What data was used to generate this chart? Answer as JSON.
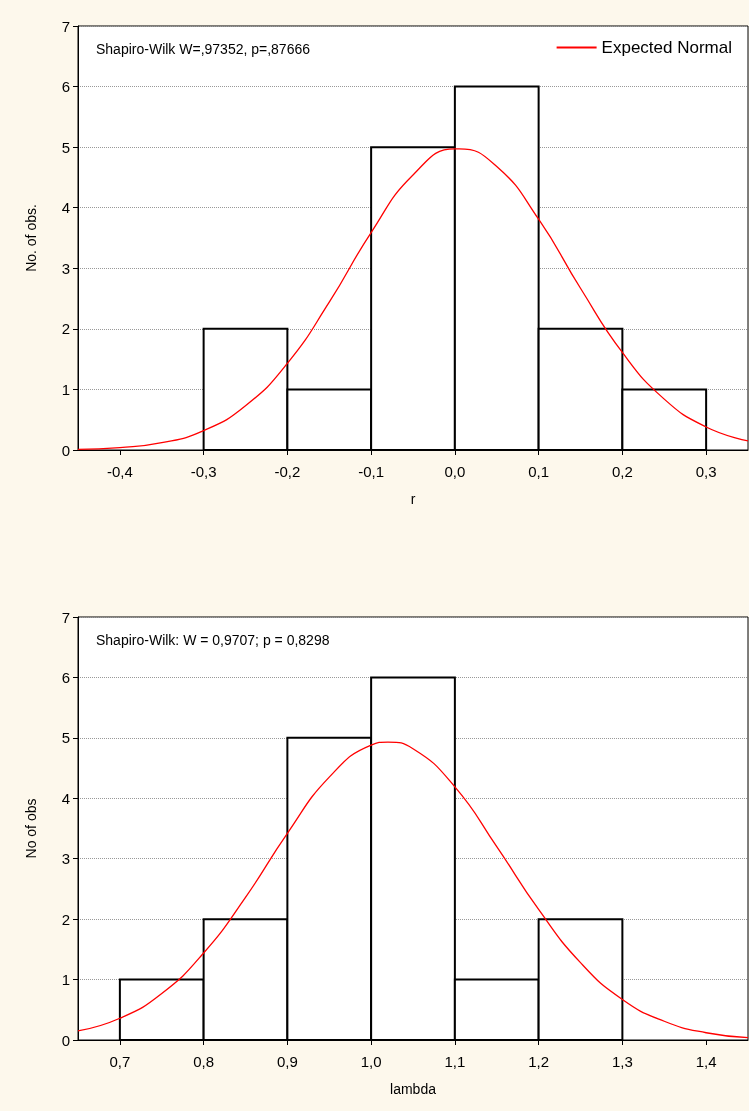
{
  "chart_data": [
    {
      "type": "histogram",
      "xlabel": "r",
      "ylabel": "No. of obs.",
      "annotations": [
        "Shapiro-Wilk W=,97352, p=,87666"
      ],
      "bins": [
        -0.3,
        -0.2,
        -0.1,
        0,
        0.1,
        0.2,
        0.3
      ],
      "xlim": [
        -0.45,
        0.35
      ],
      "xticks": [
        {
          "value": -0.4,
          "label": "-0,4"
        },
        {
          "value": -0.3,
          "label": "-0,3"
        },
        {
          "value": -0.2,
          "label": "-0,2"
        },
        {
          "value": -0.1,
          "label": "-0,1"
        },
        {
          "value": 0,
          "label": "0,0"
        },
        {
          "value": 0.1,
          "label": "0,1"
        },
        {
          "value": 0.2,
          "label": "0,2"
        },
        {
          "value": 0.3,
          "label": "0,3"
        }
      ],
      "ylim": [
        0,
        7
      ],
      "yticks": [
        0,
        1,
        2,
        3,
        4,
        5,
        6,
        7
      ],
      "grid": "y",
      "legend": "top right",
      "marker": "none",
      "series": [
        {
          "color": "#ffffff",
          "values": [
            2,
            1,
            5,
            6,
            2,
            1
          ]
        },
        {
          "type": "line",
          "name": "Expected Normal",
          "color": "#ff0000",
          "x": [
            -0.45,
            -0.4,
            -0.35,
            -0.3,
            -0.25,
            -0.2,
            -0.15,
            -0.1,
            -0.05,
            0,
            0.005,
            0.05,
            0.1,
            0.15,
            0.2,
            0.25,
            0.3,
            0.35
          ],
          "values": [
            0.01,
            0.04,
            0.12,
            0.32,
            0.73,
            1.43,
            2.44,
            3.59,
            4.54,
            4.97,
            4.97,
            4.68,
            3.81,
            2.67,
            1.61,
            0.84,
            0.38,
            0.15
          ]
        }
      ]
    },
    {
      "type": "histogram",
      "xlabel": "lambda",
      "ylabel": "No of obs",
      "annotations": [
        "Shapiro-Wilk: W = 0,9707; p = 0,8298"
      ],
      "bins": [
        0.7,
        0.8,
        0.9,
        1.0,
        1.1,
        1.2,
        1.3
      ],
      "xlim": [
        0.65,
        1.45
      ],
      "xticks": [
        {
          "value": 0.7,
          "label": "0,7"
        },
        {
          "value": 0.8,
          "label": "0,8"
        },
        {
          "value": 0.9,
          "label": "0,9"
        },
        {
          "value": 1.0,
          "label": "1,0"
        },
        {
          "value": 1.1,
          "label": "1,1"
        },
        {
          "value": 1.2,
          "label": "1,2"
        },
        {
          "value": 1.3,
          "label": "1,3"
        },
        {
          "value": 1.4,
          "label": "1,4"
        }
      ],
      "ylim": [
        0,
        7
      ],
      "yticks": [
        0,
        1,
        2,
        3,
        4,
        5,
        6,
        7
      ],
      "grid": "y",
      "marker": "none",
      "series": [
        {
          "color": "#ffffff",
          "values": [
            1,
            2,
            5,
            6,
            1,
            2
          ]
        },
        {
          "type": "line",
          "color": "#ff0000",
          "x": [
            0.65,
            0.7,
            0.75,
            0.8,
            0.85,
            0.9,
            0.95,
            1.0,
            1.02,
            1.05,
            1.1,
            1.15,
            1.2,
            1.25,
            1.3,
            1.35,
            1.4,
            1.45
          ],
          "values": [
            0.15,
            0.36,
            0.77,
            1.44,
            2.36,
            3.42,
            4.35,
            4.88,
            4.93,
            4.82,
            4.19,
            3.2,
            2.16,
            1.28,
            0.67,
            0.31,
            0.12,
            0.04
          ]
        }
      ]
    }
  ]
}
